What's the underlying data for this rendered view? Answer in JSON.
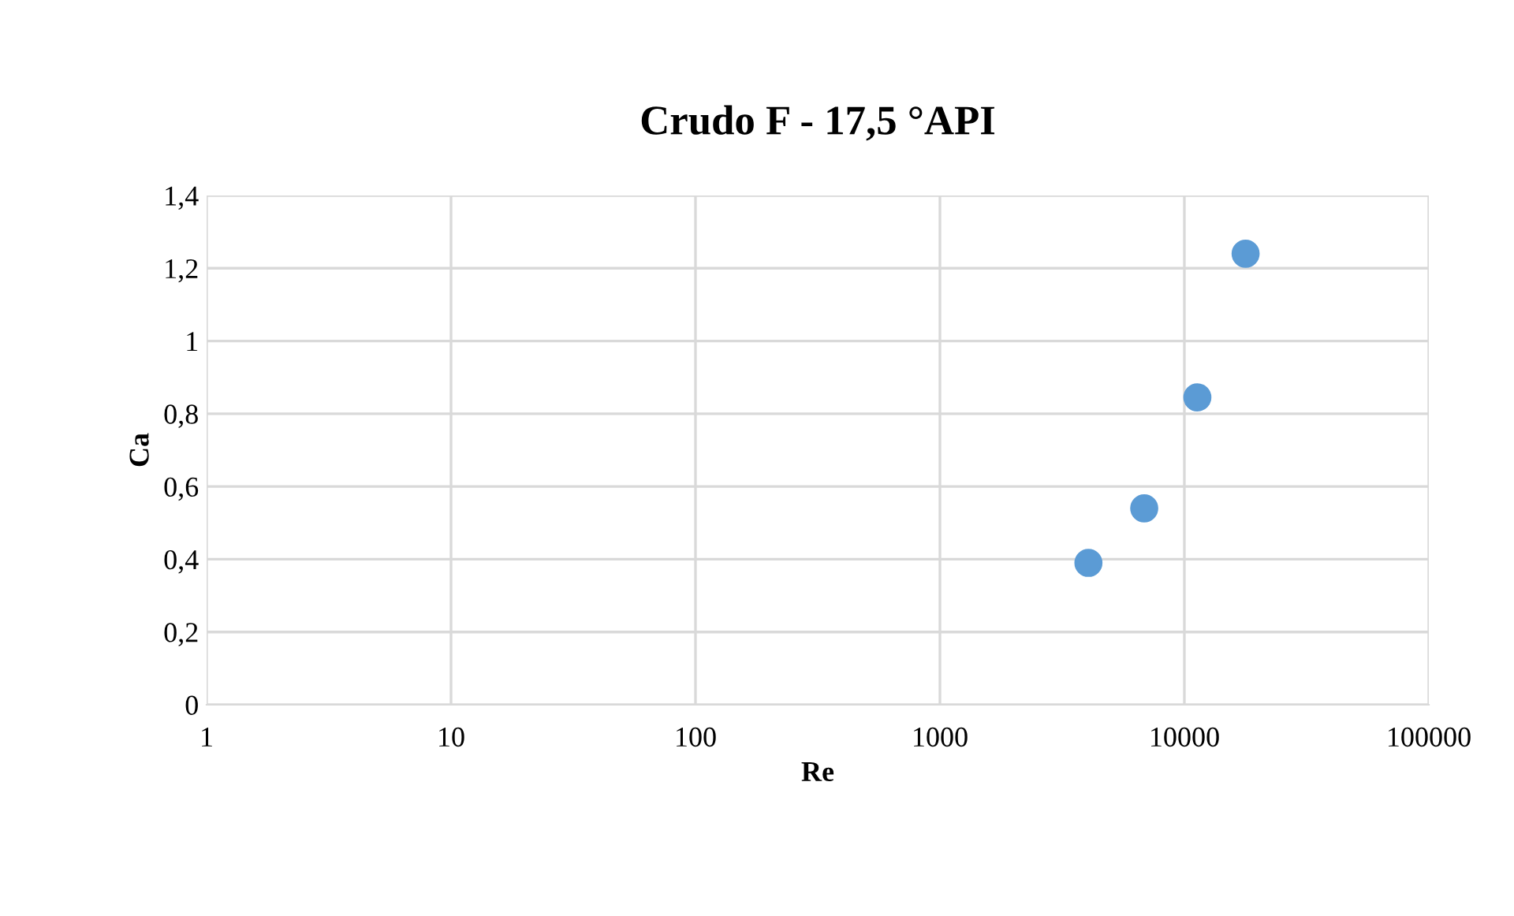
{
  "chart_data": {
    "type": "scatter",
    "title": "Crudo F - 17,5 °API",
    "xlabel": "Re",
    "ylabel": "Ca",
    "x": [
      4050,
      6850,
      11300,
      17800
    ],
    "series": [
      {
        "color": "#5b9bd5",
        "values": [
          0.39,
          0.54,
          0.845,
          1.24
        ]
      }
    ],
    "log": "x",
    "xlim": [
      1,
      100000
    ],
    "xticks": [
      1,
      10,
      100,
      1000,
      10000,
      100000
    ],
    "ylim": [
      0,
      1.4
    ],
    "yticks": [
      0,
      {
        "value": 0.2,
        "label": "0,2"
      },
      {
        "value": 0.4,
        "label": "0,4"
      },
      {
        "value": 0.6,
        "label": "0,6"
      },
      {
        "value": 0.8,
        "label": "0,8"
      },
      1,
      {
        "value": 1.2,
        "label": "1,2"
      },
      {
        "value": 1.4,
        "label": "1,4"
      }
    ],
    "grid": true,
    "marker": "circle",
    "legend": false
  }
}
